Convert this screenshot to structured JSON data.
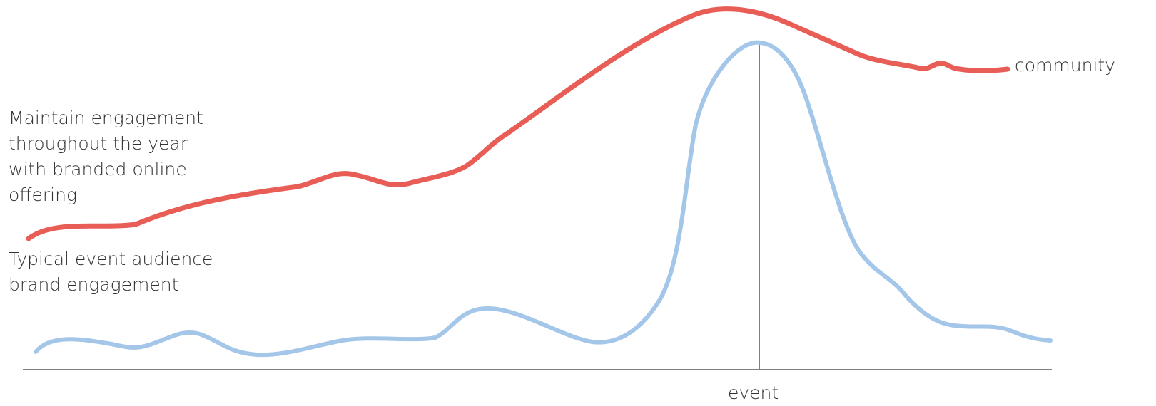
{
  "labels": {
    "community": "community",
    "community_note": "Maintain engagement\nthroughout the year\nwith branded online\noffering",
    "event_note": "Typical event audience\nbrand engagement",
    "event_marker": "event"
  },
  "colors": {
    "community_line": "#e85d56",
    "event_line": "#a3c6e9",
    "axis": "#808080",
    "text": "#333333"
  }
}
